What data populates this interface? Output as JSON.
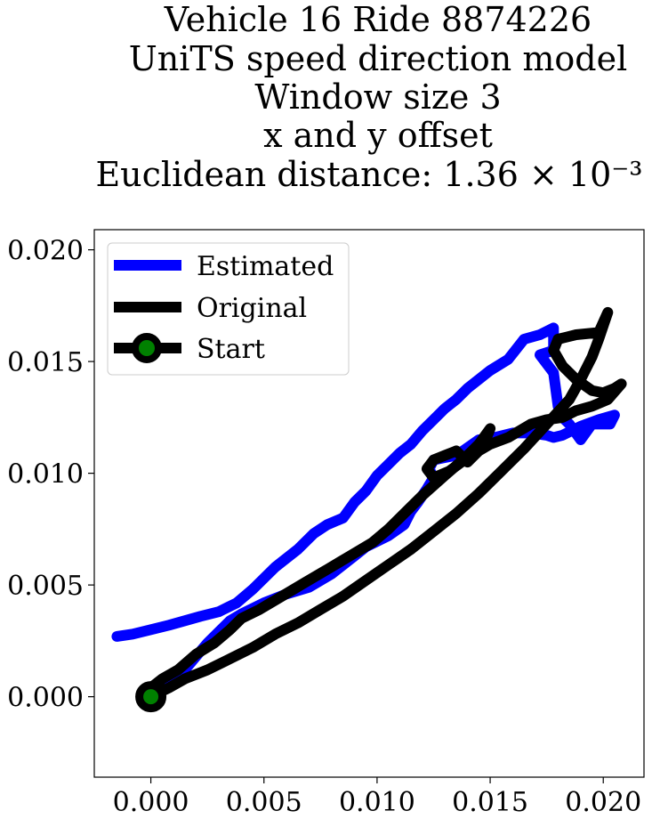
{
  "title_lines": [
    "Vehicle 16 Ride 8874226",
    "UniTS speed direction model",
    "Window size 3",
    "x and y offset",
    "Euclidean distance: 1.36 × 10⁻³"
  ],
  "legend": {
    "estimated": "Estimated",
    "original": "Original",
    "start": "Start"
  },
  "colors": {
    "estimated": "#0000ff",
    "original": "#000000",
    "start_fill": "#008000",
    "start_edge": "#000000"
  },
  "chart_data": {
    "type": "line",
    "title": "Vehicle 16 Ride 8874226 UniTS speed direction model Window size 3 x and y offset Euclidean distance: 1.36 × 10⁻³",
    "xlabel": "",
    "ylabel": "",
    "xlim": [
      -0.0025,
      0.0218
    ],
    "ylim": [
      -0.0036,
      0.0209
    ],
    "xticks": [
      0.0,
      0.005,
      0.01,
      0.015,
      0.02
    ],
    "xtick_labels": [
      "0.000",
      "0.005",
      "0.010",
      "0.015",
      "0.020"
    ],
    "yticks": [
      0.0,
      0.005,
      0.01,
      0.015,
      0.02
    ],
    "ytick_labels": [
      "0.000",
      "0.005",
      "0.010",
      "0.015",
      "0.020"
    ],
    "grid": false,
    "legend_position": "upper-left",
    "series": [
      {
        "name": "Estimated",
        "color": "#0000ff",
        "x": [
          -0.0015,
          -0.0008,
          0.0,
          0.0008,
          0.0015,
          0.0022,
          0.003,
          0.0038,
          0.0045,
          0.0055,
          0.0065,
          0.0072,
          0.0078,
          0.0085,
          0.009,
          0.0095,
          0.01,
          0.0105,
          0.011,
          0.0115,
          0.012,
          0.0125,
          0.013,
          0.0135,
          0.014,
          0.0145,
          0.015,
          0.0158,
          0.0165,
          0.0172,
          0.0178,
          0.0178,
          0.0172,
          0.0178,
          0.018,
          0.0182,
          0.0185,
          0.019,
          0.0195,
          0.0203,
          0.0205,
          0.0198,
          0.019,
          0.0182,
          0.0178,
          0.0175,
          0.0168,
          0.016,
          0.0152,
          0.0145,
          0.0138,
          0.0135,
          0.013,
          0.0125,
          0.0123,
          0.0125,
          0.0122,
          0.0118,
          0.0115,
          0.0112,
          0.0105,
          0.0095,
          0.009,
          0.0085,
          0.008,
          0.0075,
          0.007,
          0.006,
          0.005,
          0.004,
          0.0035,
          0.003,
          0.0025,
          0.002,
          0.0015,
          0.001,
          0.0005,
          0.0
        ],
        "y": [
          0.0027,
          0.0028,
          0.003,
          0.0032,
          0.0034,
          0.0036,
          0.0038,
          0.0042,
          0.0048,
          0.0058,
          0.0066,
          0.0073,
          0.0077,
          0.008,
          0.0087,
          0.0092,
          0.0099,
          0.0104,
          0.0109,
          0.0113,
          0.0119,
          0.0124,
          0.0129,
          0.0133,
          0.0138,
          0.0142,
          0.0146,
          0.0151,
          0.016,
          0.0162,
          0.0165,
          0.0155,
          0.0153,
          0.0145,
          0.013,
          0.0125,
          0.0122,
          0.0115,
          0.0122,
          0.0122,
          0.0126,
          0.0124,
          0.0121,
          0.0117,
          0.0116,
          0.0117,
          0.0118,
          0.0118,
          0.0116,
          0.0115,
          0.011,
          0.0108,
          0.0107,
          0.0106,
          0.0102,
          0.0098,
          0.0093,
          0.0087,
          0.0083,
          0.0077,
          0.0072,
          0.0067,
          0.0063,
          0.0059,
          0.0055,
          0.0052,
          0.0049,
          0.0046,
          0.0042,
          0.0037,
          0.0034,
          0.0029,
          0.0024,
          0.0018,
          0.0012,
          0.0007,
          0.0003,
          0.0
        ]
      },
      {
        "name": "Original",
        "color": "#000000",
        "x": [
          0.0,
          0.0008,
          0.0015,
          0.0025,
          0.0035,
          0.0045,
          0.0055,
          0.0065,
          0.0075,
          0.0085,
          0.0095,
          0.0105,
          0.0115,
          0.0125,
          0.0135,
          0.0145,
          0.0155,
          0.0165,
          0.0175,
          0.0185,
          0.019,
          0.0195,
          0.0198,
          0.02,
          0.0202,
          0.0198,
          0.0188,
          0.018,
          0.0178,
          0.0182,
          0.0188,
          0.0195,
          0.02,
          0.0205,
          0.0208,
          0.0202,
          0.0195,
          0.0188,
          0.0182,
          0.0175,
          0.0168,
          0.0158,
          0.015,
          0.0145,
          0.014,
          0.0135,
          0.013,
          0.0125,
          0.0122,
          0.0125,
          0.0132,
          0.014,
          0.0148,
          0.015,
          0.0145,
          0.0138,
          0.013,
          0.012,
          0.0112,
          0.0105,
          0.0098,
          0.0088,
          0.0078,
          0.0068,
          0.0058,
          0.0048,
          0.004,
          0.0035,
          0.0028,
          0.002,
          0.0012,
          0.0005,
          0.0
        ],
        "y": [
          0.0,
          0.0004,
          0.0008,
          0.0012,
          0.0017,
          0.0022,
          0.0028,
          0.0033,
          0.0039,
          0.0045,
          0.0052,
          0.0059,
          0.0066,
          0.0074,
          0.0082,
          0.0091,
          0.0101,
          0.0111,
          0.0122,
          0.0133,
          0.0142,
          0.0152,
          0.016,
          0.0166,
          0.0172,
          0.0163,
          0.0162,
          0.016,
          0.0155,
          0.0148,
          0.0142,
          0.0137,
          0.0136,
          0.0138,
          0.014,
          0.0133,
          0.013,
          0.0128,
          0.0125,
          0.0124,
          0.0122,
          0.0116,
          0.0113,
          0.011,
          0.0105,
          0.011,
          0.0108,
          0.0106,
          0.0102,
          0.0098,
          0.0101,
          0.0107,
          0.0115,
          0.012,
          0.0113,
          0.0106,
          0.0099,
          0.009,
          0.0082,
          0.0075,
          0.0069,
          0.0063,
          0.0057,
          0.0051,
          0.0045,
          0.0039,
          0.0035,
          0.003,
          0.0024,
          0.0019,
          0.0012,
          0.0008,
          0.0004
        ]
      }
    ],
    "start_point": {
      "name": "Start",
      "x": 0.0,
      "y": 0.0
    }
  }
}
